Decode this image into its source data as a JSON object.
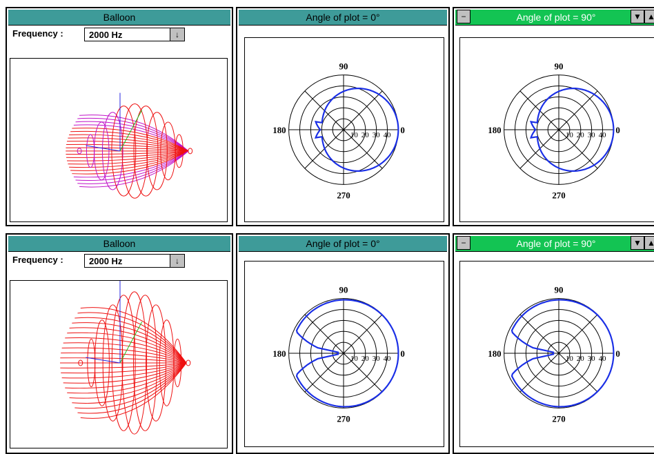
{
  "windows": [
    {
      "title": "Balloon",
      "frequency_label": "Frequency :",
      "frequency_value": "2000 Hz"
    },
    {
      "title": "Angle of plot = 0°"
    },
    {
      "title": "Angle of plot = 90°"
    },
    {
      "title": "Balloon",
      "frequency_label": "Frequency :",
      "frequency_value": "2000 Hz"
    },
    {
      "title": "Angle of plot = 0°"
    },
    {
      "title": "Angle of plot = 90°"
    }
  ],
  "polar": {
    "angle_labels": [
      "90",
      "180",
      "0",
      "270"
    ],
    "ring_labels": [
      "10",
      "20",
      "30",
      "40"
    ]
  },
  "icons": {
    "system_menu": "minus-icon",
    "minimize": "triangle-down-icon",
    "maximize": "triangle-up-icon",
    "dropdown": "arrow-down-icon"
  },
  "colors": {
    "title_bar": "#3e9b99",
    "active_title_bar": "#13c453",
    "polar_curve": "#1a2fe6",
    "balloon_red": "#ee1010",
    "balloon_purple": "#c010c8"
  }
}
